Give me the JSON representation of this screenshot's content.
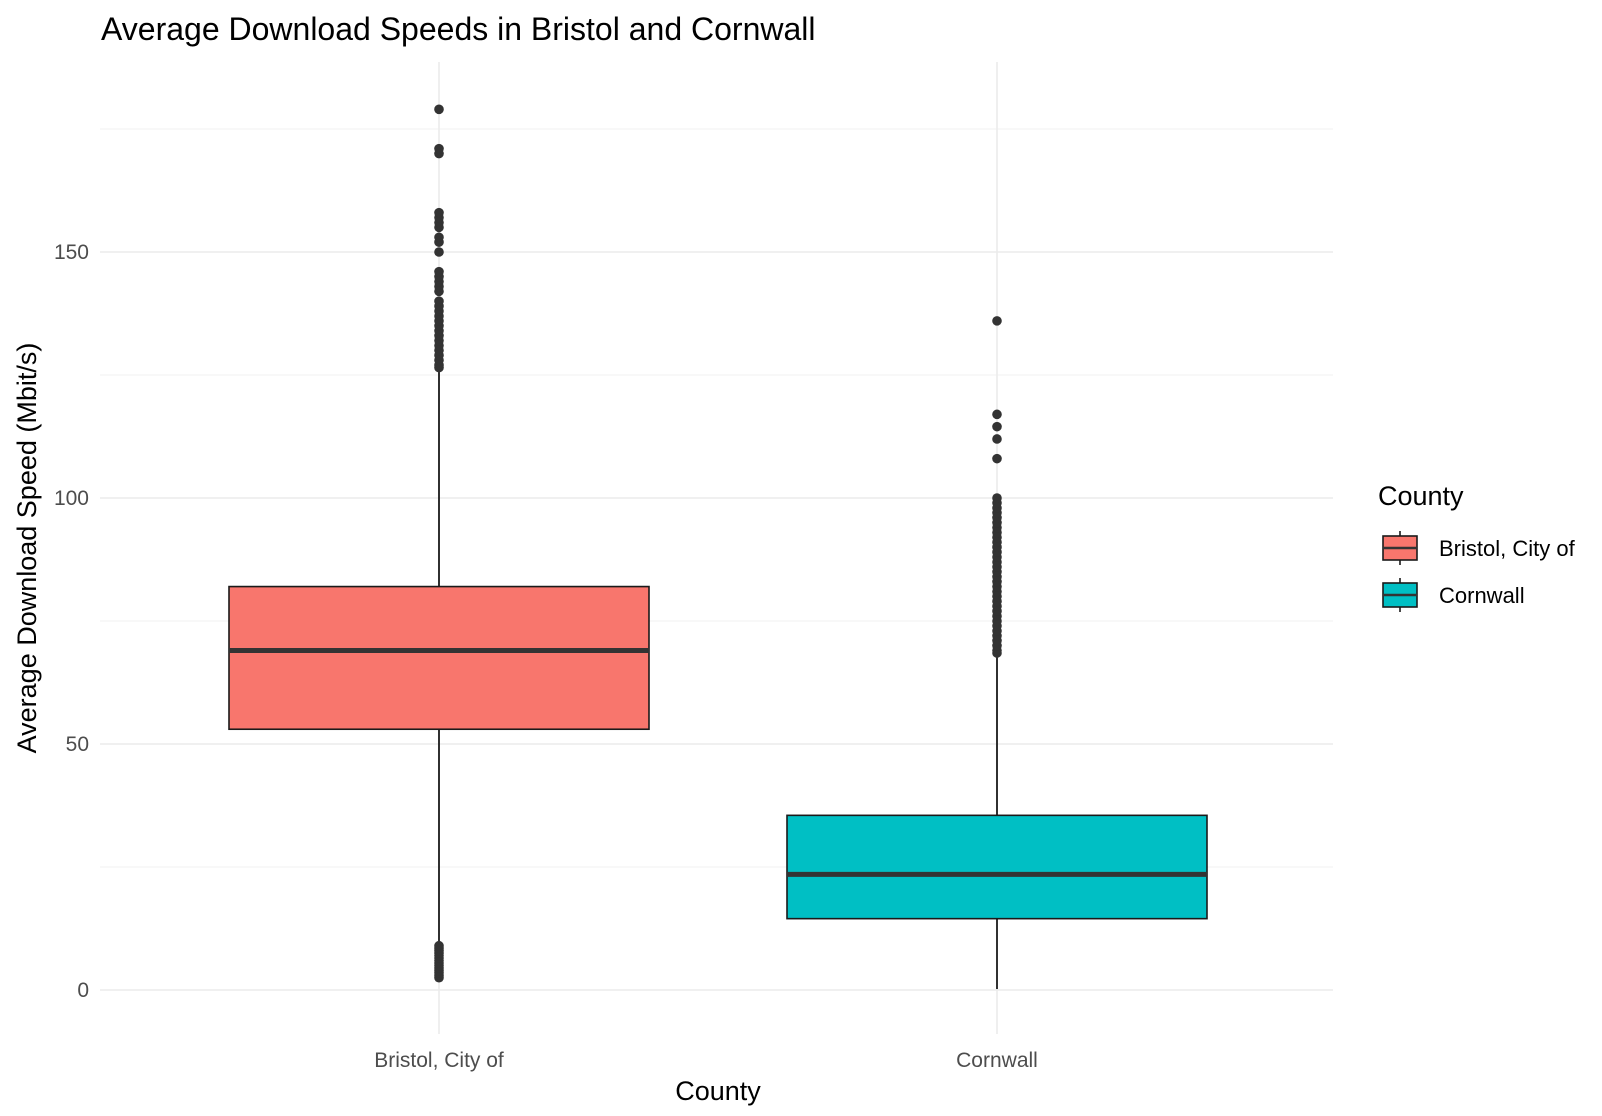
{
  "chart_data": {
    "type": "boxplot",
    "title": "Average Download Speeds in Bristol and Cornwall",
    "xlabel": "County",
    "ylabel": "Average Download Speed (Mbit/s)",
    "ylim": [
      -8,
      188
    ],
    "y_ticks": [
      0,
      50,
      100,
      150
    ],
    "grid": true,
    "legend": {
      "title": "County",
      "placement": "right"
    },
    "categories": [
      "Bristol, City of",
      "Cornwall"
    ],
    "series": [
      {
        "name": "Bristol, City of",
        "color": "#F8766D",
        "whisker_low": 9.5,
        "q1": 53,
        "median": 69,
        "q3": 82,
        "whisker_high": 126,
        "outliers": [
          2.5,
          3,
          3.5,
          4,
          4.5,
          5,
          5.5,
          6,
          6.5,
          7,
          7.5,
          8,
          8.5,
          9,
          126.5,
          127,
          128,
          129,
          130,
          131,
          132,
          133,
          134,
          135,
          136,
          137,
          138,
          139,
          140,
          142,
          143,
          144,
          145,
          146,
          150,
          152,
          153,
          155,
          156,
          157,
          158,
          170,
          171,
          179
        ]
      },
      {
        "name": "Cornwall",
        "color": "#00BFC4",
        "whisker_low": 0.2,
        "q1": 14.5,
        "median": 23.5,
        "q3": 35.5,
        "whisker_high": 68,
        "outliers": [
          68.5,
          69,
          70,
          71,
          72,
          73,
          74,
          75,
          76,
          77,
          78,
          79,
          80,
          81,
          82,
          83,
          84,
          85,
          86,
          87,
          88,
          89,
          90,
          91,
          92,
          93,
          94,
          95,
          96,
          97,
          98,
          99,
          100,
          108,
          112,
          114.5,
          117,
          136
        ]
      }
    ]
  }
}
